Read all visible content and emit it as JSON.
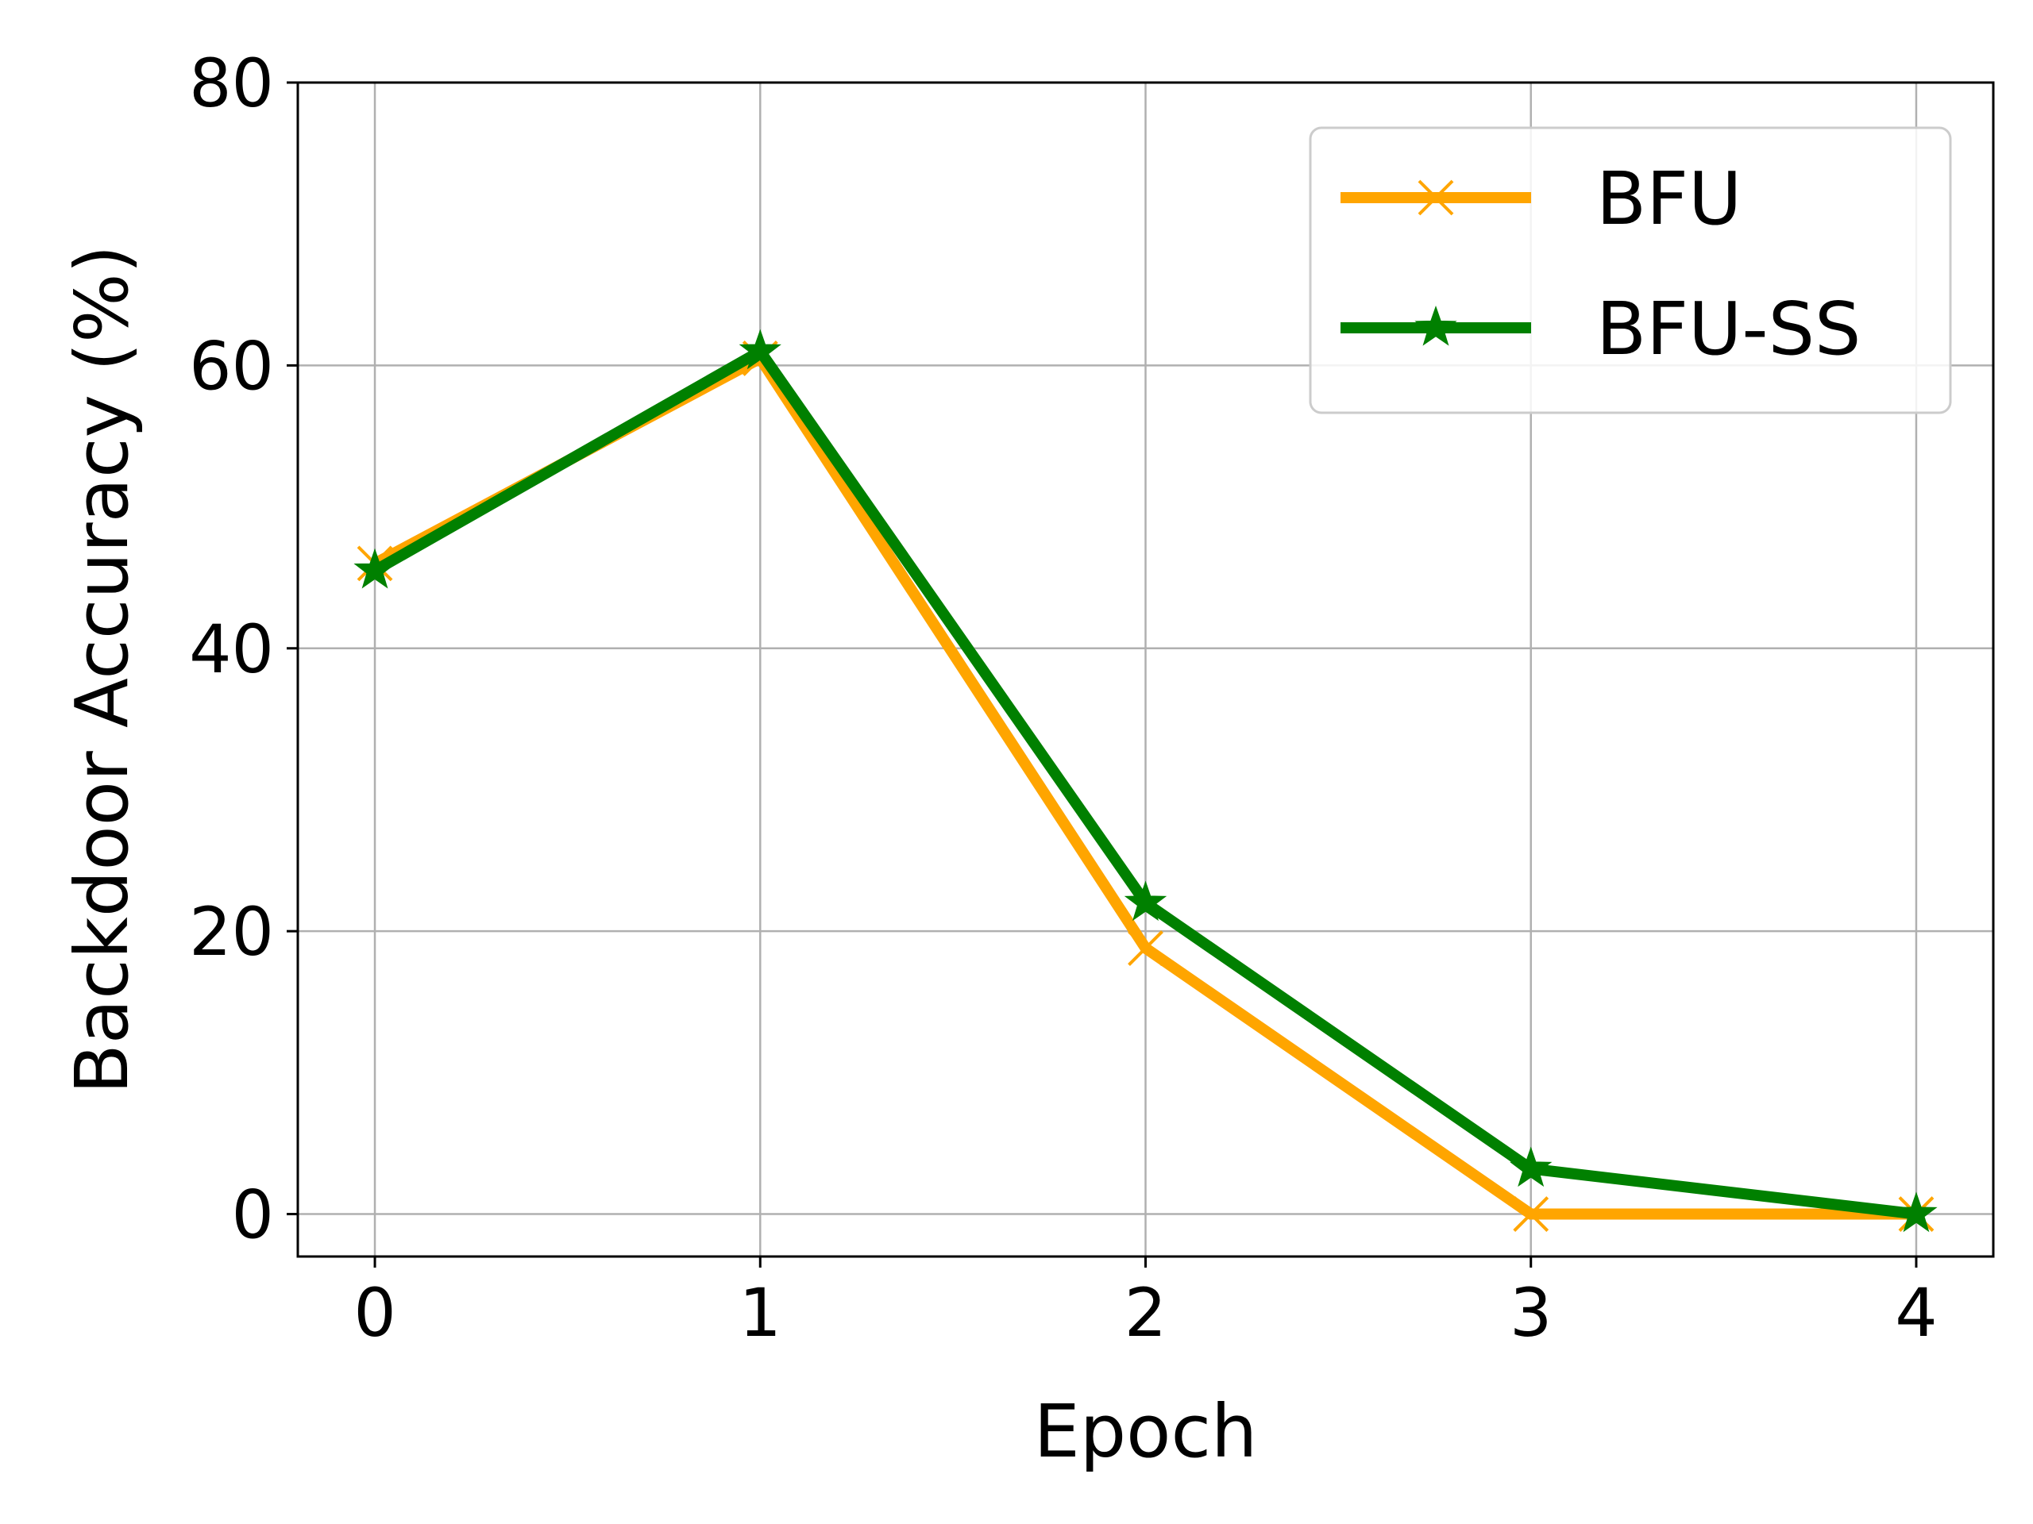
{
  "chart_data": {
    "type": "line",
    "title": "",
    "xlabel": "Epoch",
    "ylabel": "Backdoor Accuracy (%)",
    "x": [
      0,
      1,
      2,
      3,
      4
    ],
    "xticks": [
      "0",
      "1",
      "2",
      "3",
      "4"
    ],
    "yticks": [
      "0",
      "20",
      "40",
      "60",
      "80"
    ],
    "xlim": [
      -0.2,
      4.2
    ],
    "ylim": [
      -3,
      80
    ],
    "grid": true,
    "legend_position": "top-right",
    "series": [
      {
        "name": "BFU",
        "values": [
          46,
          60.5,
          18.8,
          0,
          0
        ],
        "color": "#FFA500",
        "marker": "x"
      },
      {
        "name": "BFU-SS",
        "values": [
          45.5,
          61,
          22,
          3.2,
          0
        ],
        "color": "#008000",
        "marker": "star"
      }
    ]
  }
}
